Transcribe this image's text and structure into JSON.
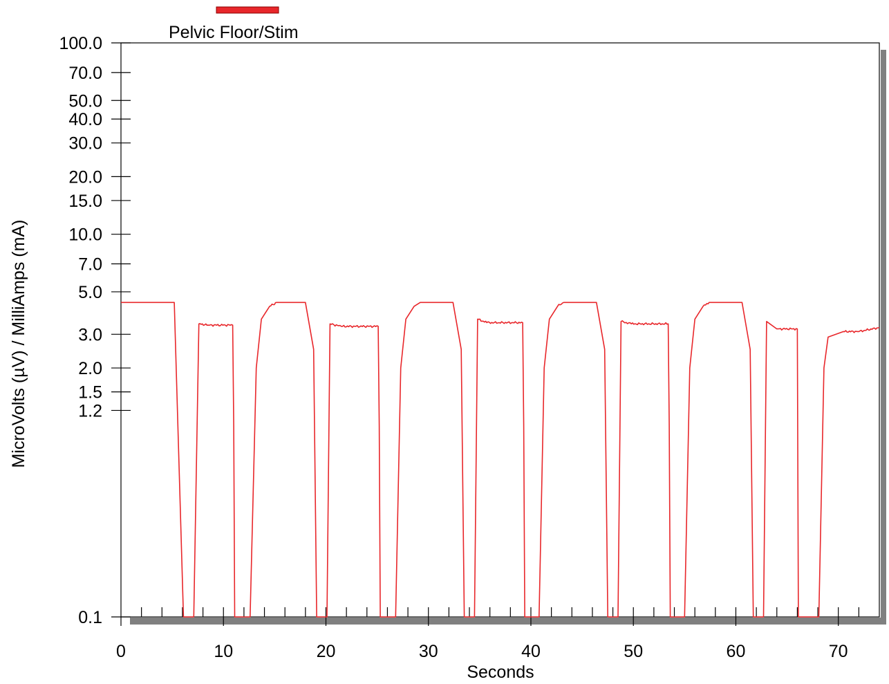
{
  "chart_data": {
    "type": "line",
    "title": "",
    "xlabel": "Seconds",
    "ylabel": "MicroVolts (µV) / MilliAmps (mA)",
    "y_scale": "log",
    "xlim": [
      0,
      74
    ],
    "ylim": [
      0.1,
      100.0
    ],
    "x_ticks": [
      "0",
      "10",
      "20",
      "30",
      "40",
      "50",
      "60",
      "70"
    ],
    "y_ticks": [
      "100.0",
      "70.0",
      "50.0",
      "40.0",
      "30.0",
      "20.0",
      "15.0",
      "10.0",
      "7.0",
      "5.0",
      "3.0",
      "2.0",
      "1.5",
      "1.2",
      "0.1"
    ],
    "grid": false,
    "legend_position": "top-left",
    "series": [
      {
        "name": "Pelvic Floor/Stim",
        "color": "#e8262a",
        "x": [
          0,
          5.2,
          6.1,
          7.1,
          7.6,
          8.5,
          10.9,
          11.0,
          11.1,
          12.6,
          13.2,
          13.7,
          14.5,
          15.2,
          18.0,
          18.8,
          19.1,
          20.1,
          20.4,
          21.5,
          25.1,
          25.2,
          25.3,
          26.8,
          27.3,
          27.8,
          28.6,
          29.2,
          32.4,
          33.2,
          33.5,
          34.5,
          34.8,
          35.7,
          39.2,
          39.3,
          39.4,
          40.8,
          41.3,
          41.8,
          42.6,
          43.2,
          46.4,
          47.2,
          47.5,
          48.5,
          48.8,
          49.8,
          53.4,
          53.5,
          53.6,
          55.0,
          55.5,
          56.0,
          56.8,
          57.4,
          60.6,
          61.4,
          61.7,
          62.7,
          63.0,
          64.0,
          66.0,
          66.1,
          66.6,
          67.4,
          68.1,
          68.6,
          69.0,
          70.5,
          72.0,
          74.0
        ],
        "values": [
          4.4,
          4.4,
          0.1,
          0.1,
          3.4,
          3.35,
          3.35,
          1.0,
          0.1,
          0.1,
          2.0,
          3.6,
          4.2,
          4.4,
          4.4,
          2.5,
          0.1,
          0.1,
          3.4,
          3.3,
          3.3,
          1.0,
          0.1,
          0.1,
          2.0,
          3.6,
          4.2,
          4.4,
          4.4,
          2.5,
          0.1,
          0.1,
          3.6,
          3.45,
          3.45,
          1.0,
          0.1,
          0.1,
          2.0,
          3.6,
          4.2,
          4.4,
          4.4,
          2.5,
          0.1,
          0.1,
          3.5,
          3.4,
          3.4,
          1.0,
          0.1,
          0.1,
          2.0,
          3.6,
          4.2,
          4.4,
          4.4,
          2.5,
          0.1,
          0.1,
          3.5,
          3.2,
          3.2,
          0.1,
          0.1,
          0.1,
          0.1,
          2.0,
          2.9,
          3.1,
          3.1,
          3.25
        ]
      }
    ]
  }
}
